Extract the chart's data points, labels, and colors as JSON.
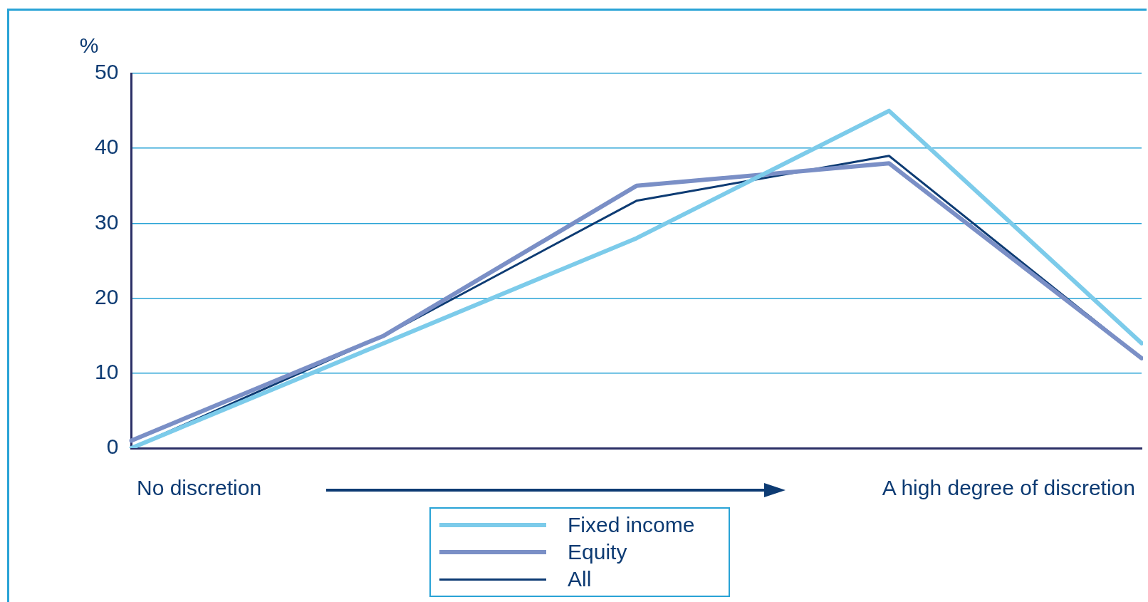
{
  "chart_data": {
    "type": "line",
    "ylabel": "%",
    "categories": [
      null,
      null,
      null,
      null,
      null
    ],
    "series": [
      {
        "name": "Fixed income",
        "color": "#7ccbea",
        "values": [
          0,
          14,
          28,
          45,
          14
        ]
      },
      {
        "name": "Equity",
        "color": "#7a8fc6",
        "values": [
          1,
          15,
          35,
          38,
          12
        ]
      },
      {
        "name": "All",
        "color": "#0d3b73",
        "values": [
          0,
          15,
          33,
          39,
          12
        ]
      }
    ],
    "ylim": [
      0,
      50
    ],
    "yticks": [
      0,
      10,
      20,
      30,
      40,
      50
    ],
    "grid": "y",
    "legend": "bottom",
    "tick_labels": "y",
    "marker": "none",
    "line_style": "solid",
    "annotations": [
      "No discretion",
      "A high degree of discretion"
    ]
  }
}
